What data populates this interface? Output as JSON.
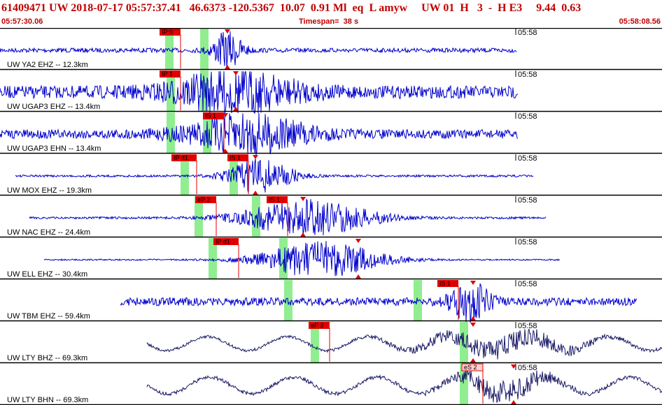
{
  "header": {
    "title": "61409471 UW 2018-07-17 05:57:37.41   46.6373 -120.5367  10.07  0.91 Ml  eq  L amyw     UW 01  H   3  -  H E3     9.44  0.63",
    "start_time": "05:57:30.06",
    "timespan": "Timespan=  38 s",
    "end_time": "05:58:08.56"
  },
  "colors": {
    "text": "#c00000",
    "trace_short_period": "#0000cc",
    "trace_broadband": "#1a1a66",
    "pick_box": "#e00000",
    "pick_box_dim": "#ffd0d0",
    "window": "#90ee90",
    "divider": "#000000"
  },
  "tick_label": "05:58",
  "traces": [
    {
      "label": "UW YA2 EHZ -- 12.3km",
      "color": "#0000cc",
      "noise": 0.12,
      "start": 0,
      "end": 738,
      "windows": [
        242,
        292
      ],
      "picks": [
        {
          "label": "IP:0",
          "x": 258,
          "dim": false
        }
      ],
      "burst": {
        "center": 325,
        "spread": 22,
        "amp": 1.0
      },
      "markers": [
        325
      ]
    },
    {
      "label": "UW UGAP3 EHZ -- 13.4km",
      "color": "#0000cc",
      "noise": 0.35,
      "start": 0,
      "end": 740,
      "windows": [
        244,
        292
      ],
      "picks": [
        {
          "label": "IP 1",
          "x": 258,
          "dim": false
        }
      ],
      "burst": {
        "center": 335,
        "spread": 90,
        "amp": 1.0
      },
      "markers": [
        337
      ]
    },
    {
      "label": "UW UGAP3 EHN -- 13.4km",
      "color": "#0000cc",
      "noise": 0.25,
      "start": 0,
      "end": 740,
      "windows": [
        244,
        296
      ],
      "picks": [
        {
          "label": "IS 1",
          "x": 320,
          "dim": false
        }
      ],
      "burst": {
        "center": 355,
        "spread": 85,
        "amp": 1.0
      },
      "markers": [
        322
      ]
    },
    {
      "label": "UW MOX EHZ -- 19.3km",
      "color": "#0000cc",
      "noise": 0.06,
      "start": 22,
      "end": 762,
      "windows": [
        264,
        334
      ],
      "picks": [
        {
          "label": "IP d1",
          "x": 281,
          "dim": false
        },
        {
          "label": "IS 1",
          "x": 355,
          "dim": false
        }
      ],
      "burst": {
        "center": 372,
        "spread": 45,
        "amp": 1.0
      },
      "markers": [
        365
      ]
    },
    {
      "label": "UW NAC EHZ -- 24.4km",
      "color": "#0000cc",
      "noise": 0.06,
      "start": 42,
      "end": 780,
      "windows": [
        284,
        366
      ],
      "picks": [
        {
          "label": "eP 2",
          "x": 309,
          "dim": false
        },
        {
          "label": "IS 1",
          "x": 411,
          "dim": false
        }
      ],
      "burst": {
        "center": 440,
        "spread": 90,
        "amp": 1.0
      },
      "markers": [
        433
      ]
    },
    {
      "label": "UW ELL EHZ -- 30.4km",
      "color": "#0000cc",
      "noise": 0.04,
      "start": 63,
      "end": 800,
      "windows": [
        304,
        405
      ],
      "picks": [
        {
          "label": "IP d1",
          "x": 341,
          "dim": false
        }
      ],
      "burst": {
        "center": 460,
        "spread": 85,
        "amp": 1.0
      },
      "markers": [
        512
      ]
    },
    {
      "label": "UW TBM EHZ -- 59.4km",
      "color": "#0000cc",
      "noise": 0.22,
      "start": 172,
      "end": 910,
      "windows": [
        412,
        597
      ],
      "picks": [
        {
          "label": "IS 1",
          "x": 655,
          "dim": false
        }
      ],
      "burst": {
        "center": 672,
        "spread": 28,
        "amp": 1.0
      },
      "markers": [
        676
      ]
    },
    {
      "label": "UW LTY BHZ -- 69.3km",
      "color": "#1a1a66",
      "noise": 0.08,
      "start": 210,
      "end": 946,
      "windows": [
        450,
        663
      ],
      "picks": [
        {
          "label": "eP 2",
          "x": 471,
          "dim": false
        }
      ],
      "burst": {
        "center": 720,
        "spread": 110,
        "amp": 0.5
      },
      "markers": [
        676
      ],
      "wave": {
        "period": 115,
        "amp": 0.55
      }
    },
    {
      "label": "UW LTY BHN -- 69.3km",
      "color": "#1a1a66",
      "noise": 0.1,
      "start": 210,
      "end": 946,
      "windows": [
        663
      ],
      "picks": [
        {
          "label": "eS 2",
          "x": 690,
          "dim": true
        }
      ],
      "burst": {
        "center": 720,
        "spread": 70,
        "amp": 0.6
      },
      "markers": [
        734
      ],
      "wave": {
        "period": 120,
        "amp": 0.65
      }
    }
  ]
}
